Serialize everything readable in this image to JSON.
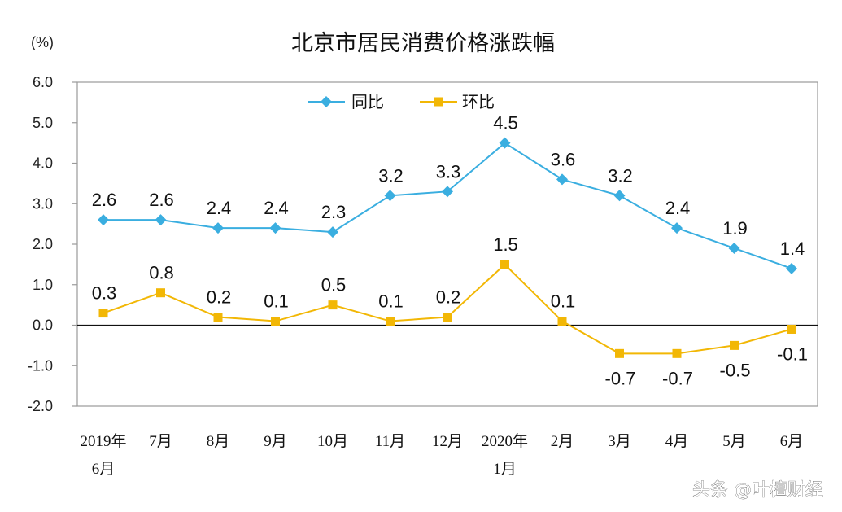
{
  "chart_data": {
    "type": "line",
    "title": "北京市居民消费价格涨跌幅",
    "unit_label": "(%)",
    "categories": [
      [
        "2019年",
        "6月"
      ],
      [
        "7月"
      ],
      [
        "8月"
      ],
      [
        "9月"
      ],
      [
        "10月"
      ],
      [
        "11月"
      ],
      [
        "12月"
      ],
      [
        "2020年",
        "1月"
      ],
      [
        "2月"
      ],
      [
        "3月"
      ],
      [
        "4月"
      ],
      [
        "5月"
      ],
      [
        "6月"
      ]
    ],
    "ylim": [
      -2.0,
      6.0
    ],
    "yticks": [
      6.0,
      5.0,
      4.0,
      3.0,
      2.0,
      1.0,
      0.0,
      -1.0,
      -2.0
    ],
    "ytick_labels": [
      "6.0",
      "5.0",
      "4.0",
      "3.0",
      "2.0",
      "1.0",
      "0.0",
      "-1.0",
      "-2.0"
    ],
    "grid": false,
    "legend_position": "top-center",
    "series": [
      {
        "name": "同比",
        "color": "#3aaee0",
        "marker": "diamond",
        "values": [
          2.6,
          2.6,
          2.4,
          2.4,
          2.3,
          3.2,
          3.3,
          4.5,
          3.6,
          3.2,
          2.4,
          1.9,
          1.4
        ],
        "labels": [
          "2.6",
          "2.6",
          "2.4",
          "2.4",
          "2.3",
          "3.2",
          "3.3",
          "4.5",
          "3.6",
          "3.2",
          "2.4",
          "1.9",
          "1.4"
        ]
      },
      {
        "name": "环比",
        "color": "#f2b705",
        "marker": "square",
        "values": [
          0.3,
          0.8,
          0.2,
          0.1,
          0.5,
          0.1,
          0.2,
          1.5,
          0.1,
          -0.7,
          -0.7,
          -0.5,
          -0.1
        ],
        "labels": [
          "0.3",
          "0.8",
          "0.2",
          "0.1",
          "0.5",
          "0.1",
          "0.2",
          "1.5",
          "0.1",
          "-0.7",
          "-0.7",
          "-0.5",
          "-0.1"
        ]
      }
    ]
  },
  "watermark": "头条 @叶檀财经"
}
